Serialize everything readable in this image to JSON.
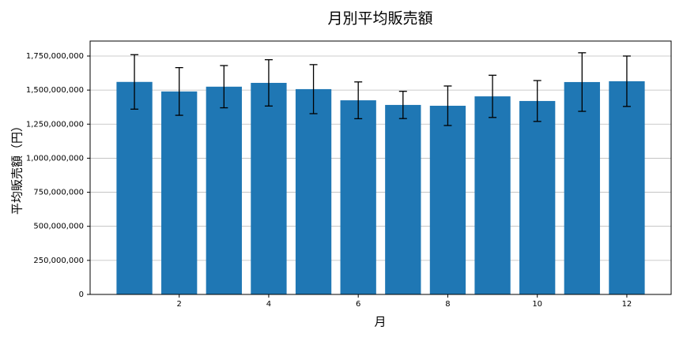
{
  "chart_data": {
    "type": "bar",
    "title": "月別平均販売額",
    "x_label": "月",
    "y_label": "平均販売額（円）",
    "x": [
      1,
      2,
      3,
      4,
      5,
      6,
      7,
      8,
      9,
      10,
      11,
      12
    ],
    "values": [
      1560000000,
      1490000000,
      1525000000,
      1553000000,
      1507000000,
      1425000000,
      1391000000,
      1385000000,
      1454000000,
      1420000000,
      1559000000,
      1565000000
    ],
    "errors": [
      200000000,
      175000000,
      155000000,
      170000000,
      180000000,
      135000000,
      100000000,
      145000000,
      155000000,
      150000000,
      215000000,
      185000000
    ],
    "color": "#1f77b4",
    "xlim": [
      0.01,
      12.99
    ],
    "xticks": [
      2,
      4,
      6,
      8,
      10,
      12
    ],
    "ylim": [
      0,
      1860000000
    ],
    "yticks": [
      0,
      {
        "value": 250000000,
        "label": "250,000,000"
      },
      {
        "value": 500000000,
        "label": "500,000,000"
      },
      {
        "value": 750000000,
        "label": "750,000,000"
      },
      {
        "value": 1000000000,
        "label": "1,000,000,000"
      },
      {
        "value": 1250000000,
        "label": "1,250,000,000"
      },
      {
        "value": 1500000000,
        "label": "1,500,000,000"
      },
      {
        "value": 1750000000,
        "label": "1,750,000,000"
      }
    ],
    "grid": true
  }
}
